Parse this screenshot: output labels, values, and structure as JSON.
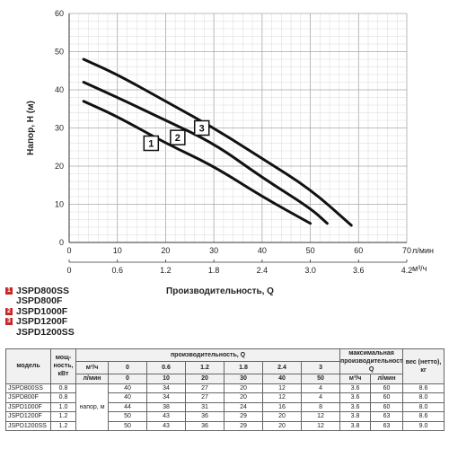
{
  "chart_data": {
    "type": "line",
    "xlabel": "Производительность, Q",
    "ylabel": "Напор, H (м)",
    "x_unit_primary": "л/мин",
    "x_unit_secondary": "м³/ч",
    "xlim": [
      0,
      70
    ],
    "ylim": [
      0,
      60
    ],
    "x_ticks": [
      "0",
      "10",
      "20",
      "30",
      "40",
      "50",
      "60",
      "70"
    ],
    "x_ticks_secondary": [
      "0",
      "0.6",
      "1.2",
      "1.8",
      "2.4",
      "3.0",
      "3.6",
      "4.2"
    ],
    "y_ticks": [
      "0",
      "10",
      "20",
      "30",
      "40",
      "50",
      "60"
    ],
    "grid": true,
    "series": [
      {
        "name": "1",
        "color": "#111111",
        "label_at": [
          17,
          26
        ],
        "x": [
          3,
          10,
          20,
          30,
          40,
          50
        ],
        "y": [
          37,
          33,
          26,
          20,
          12,
          5
        ]
      },
      {
        "name": "2",
        "color": "#111111",
        "label_at": [
          22.5,
          27.5
        ],
        "x": [
          3,
          10,
          20,
          30,
          40,
          50,
          53.5
        ],
        "y": [
          42,
          38,
          32,
          26,
          17,
          9,
          5
        ]
      },
      {
        "name": "3",
        "color": "#111111",
        "label_at": [
          27.5,
          30
        ],
        "x": [
          3,
          10,
          20,
          30,
          40,
          50,
          58.5
        ],
        "y": [
          48,
          44,
          37,
          30,
          22,
          14,
          4.5
        ]
      }
    ]
  },
  "legend": [
    {
      "badge": "1",
      "label": "JSPD800SS"
    },
    {
      "badge": "",
      "label": "JSPD800F"
    },
    {
      "badge": "2",
      "label": "JSPD1000F"
    },
    {
      "badge": "3",
      "label": "JSPD1200F"
    },
    {
      "badge": "",
      "label": "JSPD1200SS"
    }
  ],
  "table": {
    "col_model": "модель",
    "col_power": "мощ-ность, кВт",
    "col_perf": "производительность, Q",
    "col_max_perf": "максимальная производительность, Q",
    "col_weight": "вес (нетто), кг",
    "unit_m3h": "м³/ч",
    "unit_lmin": "л/мин",
    "head_label": "напор, м",
    "perf_m3h": [
      "0",
      "0.6",
      "1.2",
      "1.8",
      "2.4",
      "3"
    ],
    "perf_lmin": [
      "0",
      "10",
      "20",
      "30",
      "40",
      "50"
    ],
    "rows": [
      {
        "model": "JSPD800SS",
        "power": "0.8",
        "head": [
          "40",
          "34",
          "27",
          "20",
          "12",
          "4"
        ],
        "max_m3h": "3.6",
        "max_lmin": "60",
        "weight": "8.6"
      },
      {
        "model": "JSPD800F",
        "power": "0.8",
        "head": [
          "40",
          "34",
          "27",
          "20",
          "12",
          "4"
        ],
        "max_m3h": "3.6",
        "max_lmin": "60",
        "weight": "8.0"
      },
      {
        "model": "JSPD1000F",
        "power": "1.0",
        "head": [
          "44",
          "38",
          "31",
          "24",
          "16",
          "8"
        ],
        "max_m3h": "3.6",
        "max_lmin": "60",
        "weight": "8.0"
      },
      {
        "model": "JSPD1200F",
        "power": "1.2",
        "head": [
          "50",
          "43",
          "36",
          "29",
          "20",
          "12"
        ],
        "max_m3h": "3.8",
        "max_lmin": "63",
        "weight": "8.6"
      },
      {
        "model": "JSPD1200SS",
        "power": "1.2",
        "head": [
          "50",
          "43",
          "36",
          "29",
          "20",
          "12"
        ],
        "max_m3h": "3.8",
        "max_lmin": "63",
        "weight": "9.0"
      }
    ]
  }
}
